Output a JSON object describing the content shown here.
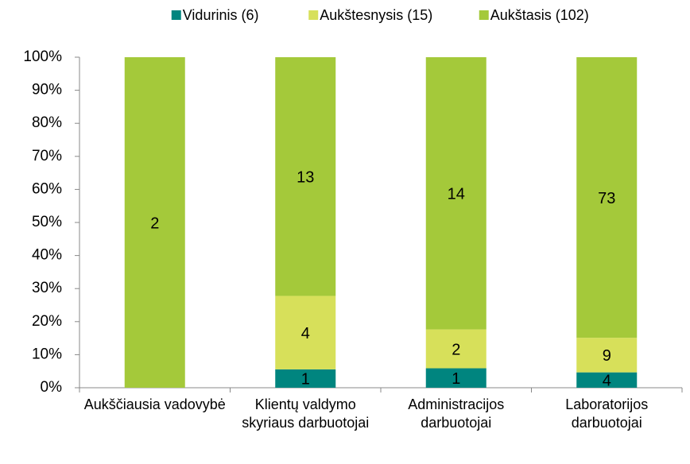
{
  "chart_data": {
    "type": "bar",
    "stacking": "percent",
    "categories": [
      "Aukščiausia vadovybė",
      "Klientų valdymo skyriaus darbuotojai",
      "Administracijos darbuotojai",
      "Laboratorijos darbuotojai"
    ],
    "series": [
      {
        "name": "Vidurinis (6)",
        "color": "#00857f",
        "values": [
          null,
          1,
          1,
          4
        ]
      },
      {
        "name": "Aukštesnysis (15)",
        "color": "#d7e05a",
        "values": [
          null,
          4,
          2,
          9
        ]
      },
      {
        "name": "Aukštasis (102)",
        "color": "#a4c93a",
        "values": [
          2,
          13,
          14,
          73
        ]
      }
    ],
    "ylim": [
      0,
      100
    ],
    "yticks": [
      {
        "value": 0,
        "label": "0%"
      },
      {
        "value": 10,
        "label": "10%"
      },
      {
        "value": 20,
        "label": "20%"
      },
      {
        "value": 30,
        "label": "30%"
      },
      {
        "value": 40,
        "label": "40%"
      },
      {
        "value": 50,
        "label": "50%"
      },
      {
        "value": 60,
        "label": "60%"
      },
      {
        "value": 70,
        "label": "70%"
      },
      {
        "value": 80,
        "label": "80%"
      },
      {
        "value": 90,
        "label": "90%"
      },
      {
        "value": 100,
        "label": "100%"
      }
    ],
    "legend": "top"
  }
}
